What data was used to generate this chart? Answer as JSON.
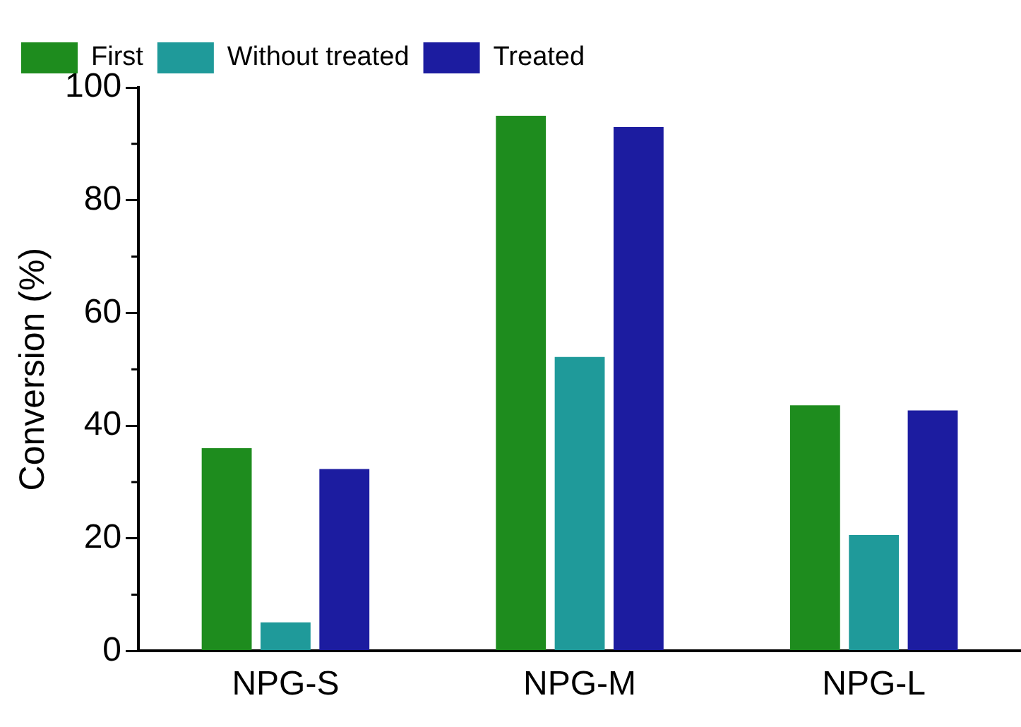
{
  "chart_data": {
    "type": "bar",
    "ylabel": "Conversion (%)",
    "categories": [
      "NPG-S",
      "NPG-M",
      "NPG-L"
    ],
    "series": [
      {
        "name": "First",
        "color": "#1e8c1e",
        "values": [
          36,
          95,
          43.6
        ]
      },
      {
        "name": "Without treated",
        "color": "#1f9a9a",
        "values": [
          5.1,
          52.2,
          20.6
        ]
      },
      {
        "name": "Treated",
        "color": "#1c1ca0",
        "values": [
          32.3,
          93,
          42.7
        ]
      }
    ],
    "ylim": [
      0,
      100
    ],
    "yticks": [
      0,
      20,
      40,
      60,
      80,
      100
    ],
    "grid": false,
    "legend": "top left"
  }
}
